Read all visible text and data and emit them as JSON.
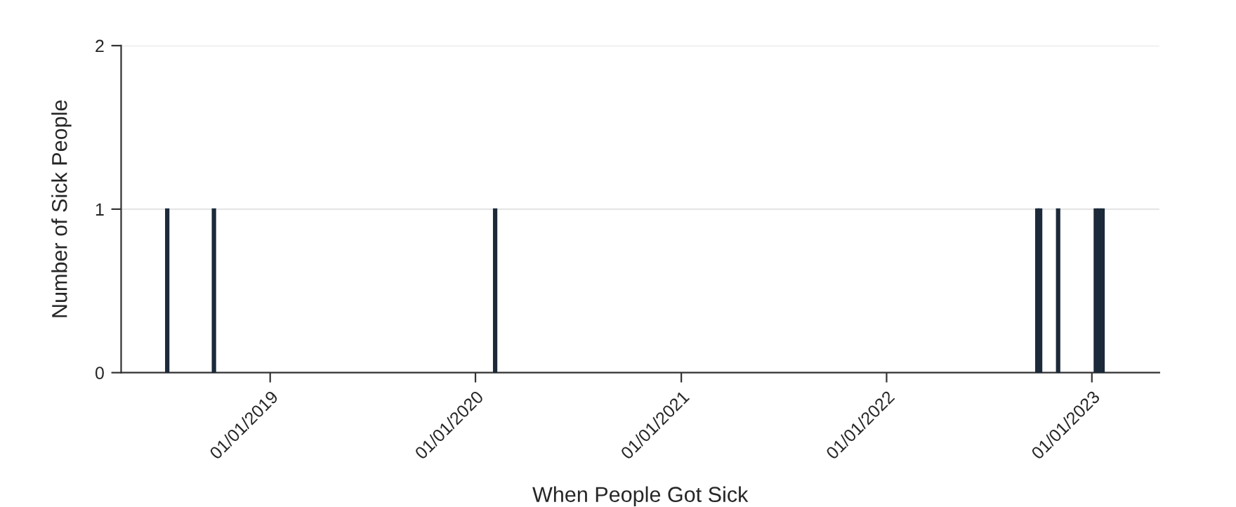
{
  "chart_data": {
    "type": "bar",
    "xlabel": "When People Got Sick",
    "ylabel": "Number of Sick People",
    "x": [
      "2018-07-02",
      "2018-09-23",
      "2020-02-05",
      "2022-09-26",
      "2022-10-01",
      "2022-11-02",
      "2023-01-08",
      "2023-01-14",
      "2023-01-20"
    ],
    "values": [
      1,
      1,
      1,
      1,
      1,
      1,
      1,
      1,
      1
    ],
    "color": "#1c2a3a",
    "xlim": [
      "2018-04-11",
      "2023-05-01"
    ],
    "xticks": [
      {
        "value": "2019-01-01",
        "label": "01/01/2019"
      },
      {
        "value": "2020-01-01",
        "label": "01/01/2020"
      },
      {
        "value": "2021-01-01",
        "label": "01/01/2021"
      },
      {
        "value": "2022-01-01",
        "label": "01/01/2022"
      },
      {
        "value": "2023-01-01",
        "label": "01/01/2023"
      }
    ],
    "ylim": [
      0,
      2
    ],
    "yticks": [
      0,
      1,
      2
    ],
    "grid": "y"
  }
}
